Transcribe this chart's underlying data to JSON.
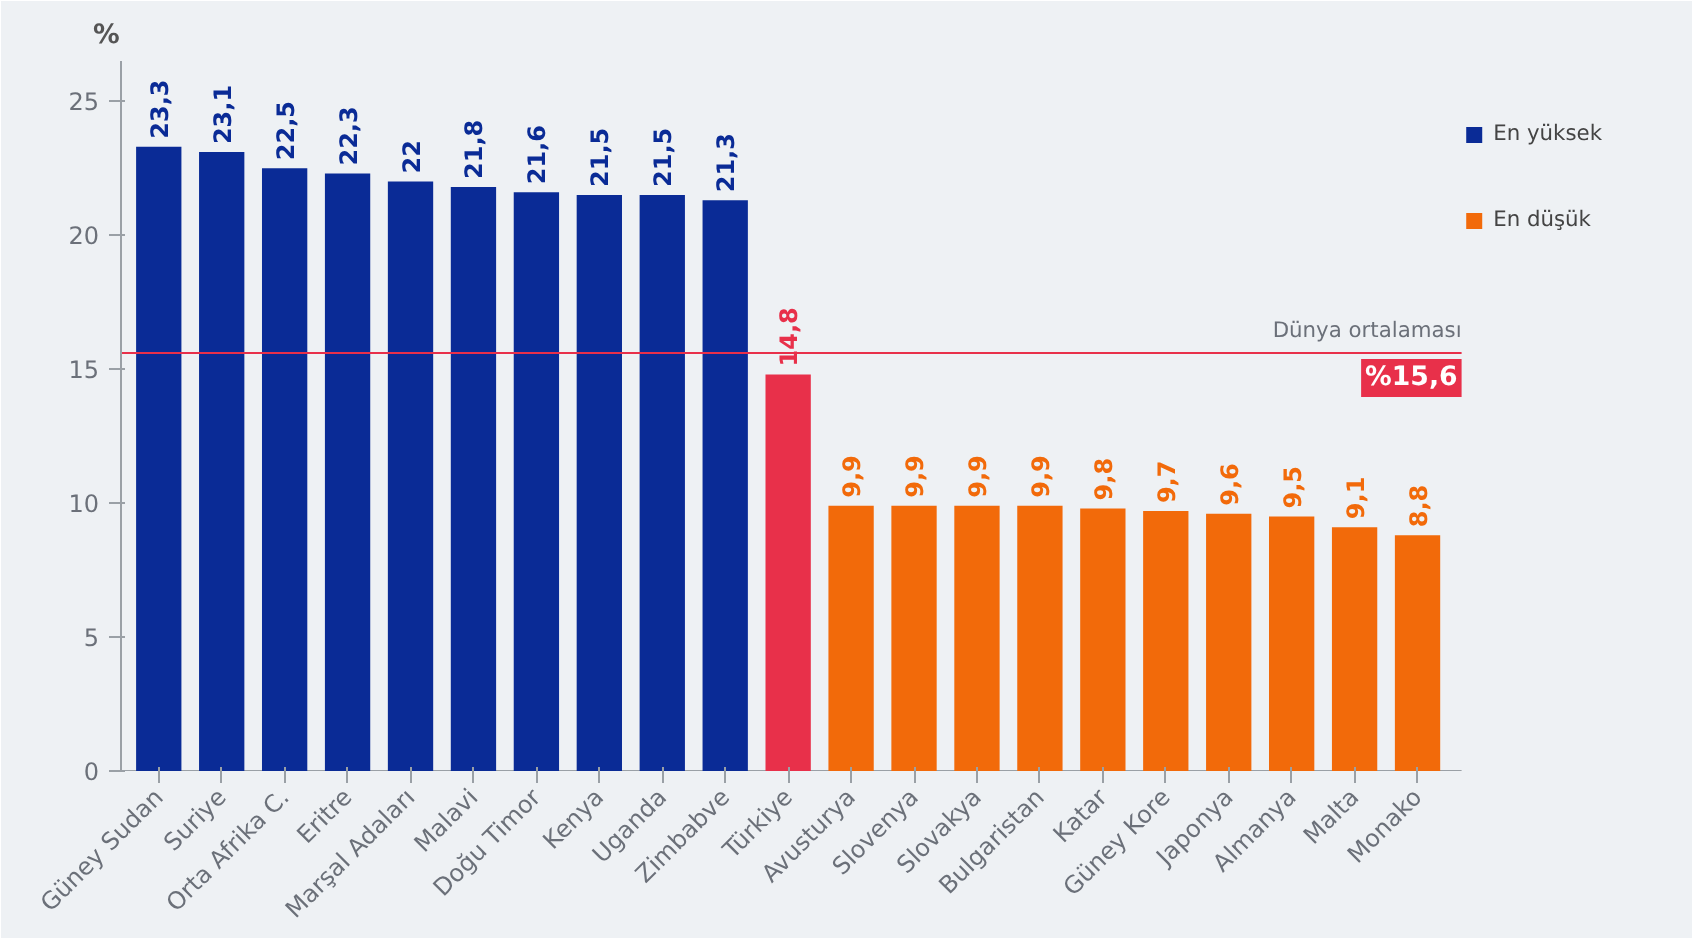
{
  "chart_data": {
    "type": "bar",
    "ylabel": "%",
    "categories": [
      "Güney Sudan",
      "Suriye",
      "Orta Afrika C.",
      "Eritre",
      "Marşal Adaları",
      "Malavi",
      "Doğu Timor",
      "Kenya",
      "Uganda",
      "Zimbabve",
      "Türkiye",
      "Avusturya",
      "Slovenya",
      "Slovakya",
      "Bulgaristan",
      "Katar",
      "Güney Kore",
      "Japonya",
      "Almanya",
      "Malta",
      "Monako"
    ],
    "series": [
      {
        "name": "En yüksek",
        "color": "#0a2b96",
        "values": [
          23.3,
          23.1,
          22.5,
          22.3,
          22,
          21.8,
          21.6,
          21.5,
          21.5,
          21.3,
          null,
          null,
          null,
          null,
          null,
          null,
          null,
          null,
          null,
          null,
          null
        ],
        "value_labels": [
          "23,3",
          "23,1",
          "22,5",
          "22,3",
          "22",
          "21,8",
          "21,6",
          "21,5",
          "21,5",
          "21,3",
          null,
          null,
          null,
          null,
          null,
          null,
          null,
          null,
          null,
          null,
          null
        ]
      },
      {
        "color": "#e8304a",
        "values": [
          null,
          null,
          null,
          null,
          null,
          null,
          null,
          null,
          null,
          null,
          14.8,
          null,
          null,
          null,
          null,
          null,
          null,
          null,
          null,
          null,
          null
        ],
        "value_labels": [
          null,
          null,
          null,
          null,
          null,
          null,
          null,
          null,
          null,
          null,
          "14,8",
          null,
          null,
          null,
          null,
          null,
          null,
          null,
          null,
          null,
          null
        ]
      },
      {
        "name": "En düşük",
        "color": "#f26a0a",
        "values": [
          null,
          null,
          null,
          null,
          null,
          null,
          null,
          null,
          null,
          null,
          null,
          9.9,
          9.9,
          9.9,
          9.9,
          9.8,
          9.7,
          9.6,
          9.5,
          9.1,
          8.8
        ],
        "value_labels": [
          null,
          null,
          null,
          null,
          null,
          null,
          null,
          null,
          null,
          null,
          null,
          "9,9",
          "9,9",
          "9,9",
          "9,9",
          "9,8",
          "9,7",
          "9,6",
          "9,5",
          "9,1",
          "8,8"
        ]
      }
    ],
    "ylim": [
      0,
      26.5
    ],
    "yticks": [
      0,
      5,
      10,
      15,
      20,
      25
    ],
    "grid": false,
    "legend": "top right",
    "ref_lines": [
      {
        "axis": "y",
        "value": 15.6,
        "label": "%15,6",
        "color": "#e8304a"
      }
    ],
    "annotations": [
      {
        "text": "Dünya ortalaması",
        "x": "Monako",
        "y": 15.6
      }
    ]
  }
}
